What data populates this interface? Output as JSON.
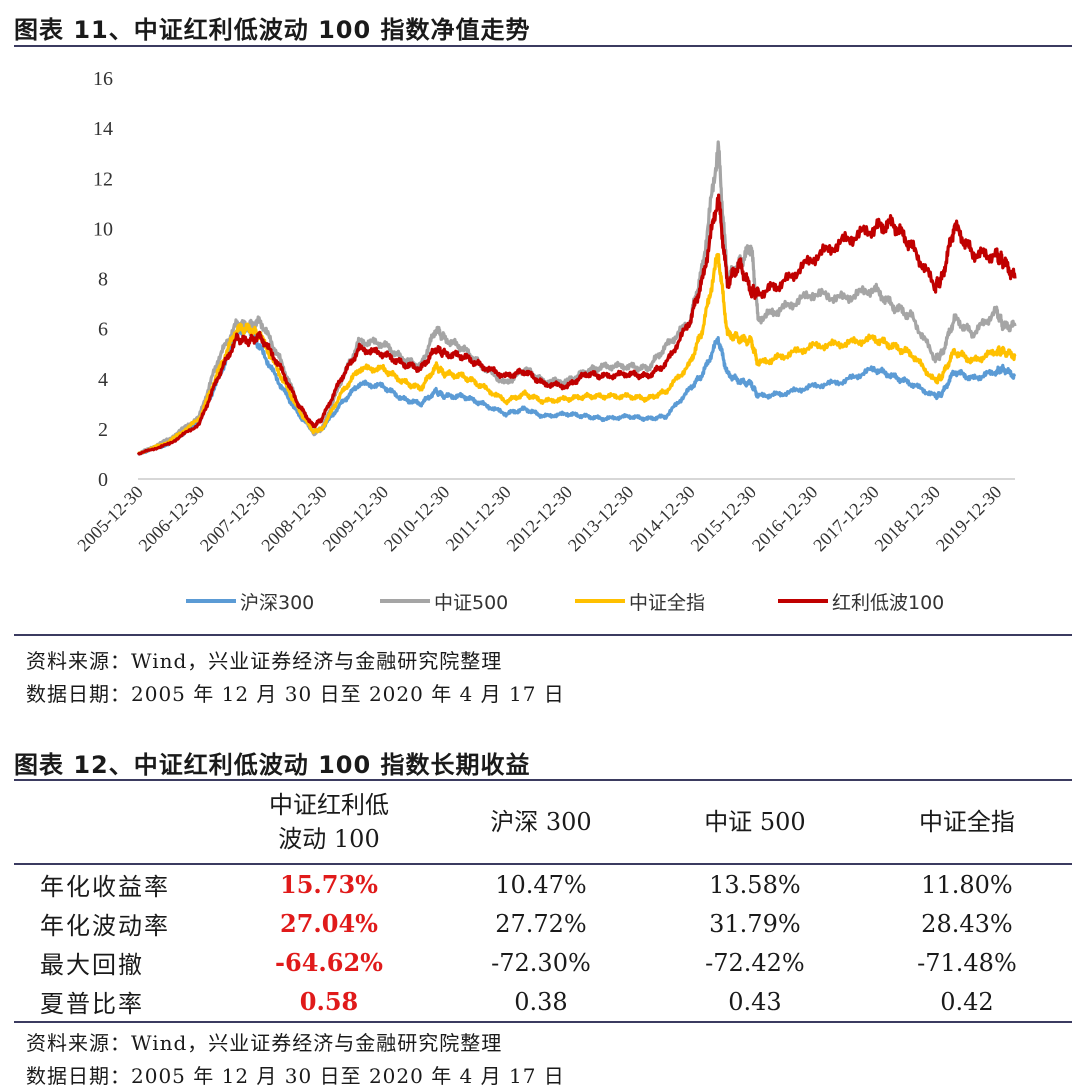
{
  "figure11": {
    "title": "图表 11、中证红利低波动 100 指数净值走势",
    "source": "资料来源：Wind，兴业证券经济与金融研究院整理",
    "date_range": "数据日期：2005 年 12 月 30 日至 2020 年 4 月 17 日"
  },
  "chart_data": {
    "type": "line",
    "title": "",
    "xlabel": "",
    "ylabel": "",
    "ylim": [
      0,
      16
    ],
    "yticks": [
      "0",
      "2",
      "4",
      "6",
      "8",
      "10",
      "12",
      "14",
      "16"
    ],
    "xticks": [
      "2005-12-30",
      "2006-12-30",
      "2007-12-30",
      "2008-12-30",
      "2009-12-30",
      "2010-12-30",
      "2011-12-30",
      "2012-12-30",
      "2013-12-30",
      "2014-12-30",
      "2015-12-30",
      "2016-12-30",
      "2017-12-30",
      "2018-12-30",
      "2019-12-30"
    ],
    "grid": false,
    "legend_position": "bottom",
    "x": [
      2005.99,
      2006.5,
      2006.99,
      2007.3,
      2007.6,
      2007.8,
      2007.99,
      2008.3,
      2008.6,
      2008.85,
      2008.99,
      2009.3,
      2009.6,
      2009.99,
      2010.3,
      2010.6,
      2010.85,
      2010.99,
      2011.3,
      2011.6,
      2011.99,
      2012.3,
      2012.6,
      2012.99,
      2013.3,
      2013.6,
      2013.99,
      2014.3,
      2014.6,
      2014.99,
      2015.2,
      2015.45,
      2015.6,
      2015.8,
      2015.99,
      2016.1,
      2016.5,
      2016.99,
      2017.5,
      2017.99,
      2018.3,
      2018.6,
      2018.99,
      2019.1,
      2019.3,
      2019.6,
      2019.99,
      2020.1,
      2020.29
    ],
    "series": [
      {
        "name": "沪深300",
        "color": "#5b9bd5",
        "values": [
          1.0,
          1.4,
          2.3,
          4.0,
          5.8,
          6.0,
          5.2,
          3.8,
          2.6,
          1.9,
          2.0,
          3.0,
          3.8,
          3.7,
          3.2,
          3.0,
          3.5,
          3.3,
          3.3,
          3.0,
          2.6,
          2.8,
          2.5,
          2.6,
          2.5,
          2.4,
          2.5,
          2.4,
          2.5,
          3.6,
          4.2,
          5.6,
          4.2,
          3.9,
          3.8,
          3.3,
          3.4,
          3.7,
          3.9,
          4.4,
          4.1,
          3.8,
          3.3,
          3.4,
          4.3,
          4.0,
          4.3,
          4.4,
          4.1
        ]
      },
      {
        "name": "中证500",
        "color": "#a5a5a5",
        "values": [
          1.0,
          1.6,
          2.5,
          4.8,
          6.2,
          6.1,
          6.3,
          4.8,
          3.0,
          1.8,
          2.0,
          3.9,
          5.5,
          5.4,
          4.8,
          4.5,
          6.0,
          5.6,
          5.2,
          4.5,
          3.8,
          4.4,
          3.9,
          3.9,
          4.3,
          4.5,
          4.5,
          4.4,
          5.3,
          6.3,
          8.5,
          13.3,
          8.0,
          8.6,
          9.3,
          6.4,
          6.8,
          7.4,
          7.2,
          7.6,
          6.9,
          6.5,
          4.8,
          5.0,
          6.4,
          5.8,
          6.7,
          6.1,
          6.1
        ]
      },
      {
        "name": "中证全指",
        "color": "#ffc000",
        "values": [
          1.0,
          1.5,
          2.4,
          4.3,
          6.0,
          6.0,
          5.7,
          4.2,
          2.8,
          1.9,
          2.0,
          3.4,
          4.4,
          4.4,
          3.9,
          3.6,
          4.5,
          4.2,
          4.1,
          3.7,
          3.1,
          3.4,
          3.1,
          3.2,
          3.3,
          3.3,
          3.3,
          3.2,
          3.5,
          4.6,
          6.0,
          9.0,
          5.8,
          5.6,
          5.5,
          4.6,
          4.9,
          5.3,
          5.4,
          5.6,
          5.3,
          5.0,
          3.9,
          4.1,
          5.1,
          4.7,
          5.1,
          5.1,
          4.9
        ]
      },
      {
        "name": "红利低波100",
        "color": "#c00000",
        "values": [
          1.0,
          1.4,
          2.2,
          4.1,
          5.6,
          5.5,
          5.7,
          4.5,
          3.0,
          2.1,
          2.4,
          4.0,
          5.2,
          5.0,
          4.6,
          4.4,
          5.2,
          5.0,
          4.9,
          4.5,
          4.1,
          4.3,
          3.8,
          3.7,
          4.2,
          4.1,
          4.2,
          4.1,
          4.6,
          6.3,
          8.0,
          11.3,
          7.8,
          8.6,
          7.5,
          7.4,
          7.8,
          8.8,
          9.5,
          10.0,
          10.2,
          9.3,
          7.7,
          8.0,
          10.1,
          9.0,
          8.9,
          8.7,
          8.0
        ]
      }
    ]
  },
  "figure12": {
    "title": "图表 12、中证红利低波动 100 指数长期收益",
    "headers": [
      [
        "",
        ""
      ],
      [
        "中证红利低",
        "波动 100"
      ],
      [
        "沪深 300"
      ],
      [
        "中证 500"
      ],
      [
        "中证全指"
      ]
    ],
    "rows": [
      {
        "label": "年化收益率",
        "values": [
          "15.73%",
          "10.47%",
          "13.58%",
          "11.80%"
        ]
      },
      {
        "label": "年化波动率",
        "values": [
          "27.04%",
          "27.72%",
          "31.79%",
          "28.43%"
        ]
      },
      {
        "label": "最大回撤",
        "values": [
          "-64.62%",
          "-72.30%",
          "-72.42%",
          "-71.48%"
        ]
      },
      {
        "label": "夏普比率",
        "values": [
          "0.58",
          "0.38",
          "0.43",
          "0.42"
        ]
      }
    ],
    "highlight_color": "#e01a1a",
    "source": "资料来源：Wind，兴业证券经济与金融研究院整理",
    "date_range": "数据日期：2005 年 12 月 30 日至 2020 年 4 月 17 日"
  }
}
